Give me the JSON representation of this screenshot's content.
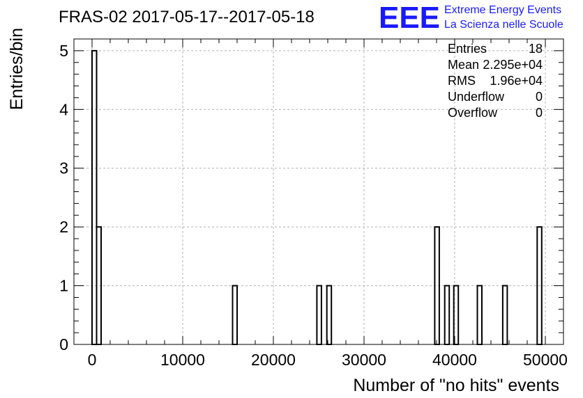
{
  "chart_data": {
    "type": "bar",
    "title": "FRAS-02 2017-05-17--2017-05-18",
    "xlabel": "Number of \"no hits\" events",
    "ylabel": "Entries/bin",
    "xlim": [
      -2000,
      52000
    ],
    "ylim": [
      0,
      5.2
    ],
    "bin_width": 500,
    "grid": true,
    "x_ticks": [
      0,
      10000,
      20000,
      30000,
      40000,
      50000
    ],
    "x_tick_labels": [
      "0",
      "10000",
      "20000",
      "30000",
      "40000",
      "50000"
    ],
    "y_ticks": [
      0,
      1,
      2,
      3,
      4,
      5
    ],
    "y_tick_labels": [
      "0",
      "1",
      "2",
      "3",
      "4",
      "5"
    ],
    "bins": [
      {
        "x": 0,
        "value": 5
      },
      {
        "x": 500,
        "value": 2
      },
      {
        "x": 15500,
        "value": 1
      },
      {
        "x": 24800,
        "value": 1
      },
      {
        "x": 25900,
        "value": 1
      },
      {
        "x": 37800,
        "value": 2
      },
      {
        "x": 38900,
        "value": 1
      },
      {
        "x": 39900,
        "value": 1
      },
      {
        "x": 42500,
        "value": 1
      },
      {
        "x": 45300,
        "value": 1
      },
      {
        "x": 49100,
        "value": 2
      }
    ]
  },
  "stats_box": {
    "rows": [
      {
        "label": "Entries",
        "value": "18"
      },
      {
        "label": "Mean",
        "value": "2.295e+04"
      },
      {
        "label": "RMS",
        "value": "1.96e+04"
      },
      {
        "label": "Underflow",
        "value": "0"
      },
      {
        "label": "Overflow",
        "value": "0"
      }
    ]
  },
  "logo": {
    "mark": "EEE",
    "line1": "Extreme Energy Events",
    "line2": "La Scienza nelle Scuole",
    "color": "#1a1aff"
  }
}
